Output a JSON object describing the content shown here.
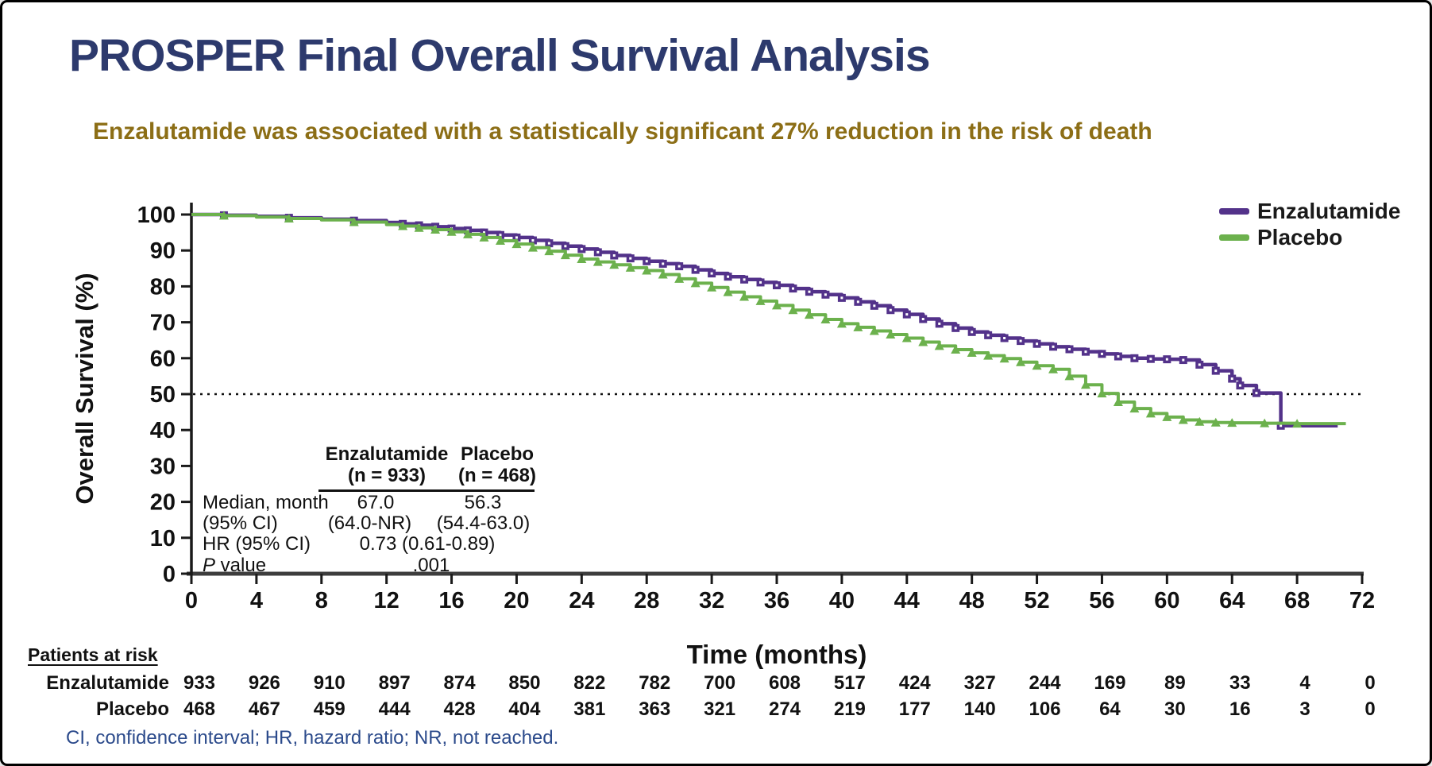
{
  "slide": {
    "title": "PROSPER Final Overall Survival Analysis",
    "subtitle": "Enzalutamide was associated with a statistically significant 27% reduction in the risk of death",
    "footnote": "CI, confidence interval; HR, hazard ratio; NR, not reached."
  },
  "colors": {
    "title_navy": "#2d3a6d",
    "subtitle_gold": "#8c6e16",
    "footnote_blue": "#2b4a8b",
    "enzalutamide_purple": "#53328a",
    "placebo_green": "#6cb14d",
    "axis_dark": "#1a1a1a",
    "xaxis_gray": "#3d3d3d"
  },
  "legend": [
    {
      "label": "Enzalutamide",
      "color": "#53328a"
    },
    {
      "label": "Placebo",
      "color": "#6cb14d"
    }
  ],
  "stats_table": {
    "col1_header": "Enzalutamide",
    "col2_header": "Placebo",
    "col1_subheader": "(n = 933)",
    "col2_subheader": "(n = 468)",
    "row1_label": "Median, month",
    "row1_col1": "67.0",
    "row1_col2": "56.3",
    "row2_label": "(95% CI)",
    "row2_col1": "(64.0-NR)",
    "row2_col2": "(54.4-63.0)",
    "row3_label": "HR (95% CI)",
    "row3_value": "0.73 (0.61-0.89)",
    "row4_label_p": "P",
    "row4_label_rest": " value",
    "row4_value": ".001"
  },
  "risk_table": {
    "header": "Patients at risk",
    "rows": [
      {
        "label": "Enzalutamide",
        "counts": [
          933,
          926,
          910,
          897,
          874,
          850,
          822,
          782,
          700,
          608,
          517,
          424,
          327,
          244,
          169,
          89,
          33,
          4,
          0
        ]
      },
      {
        "label": "Placebo",
        "counts": [
          468,
          467,
          459,
          444,
          428,
          404,
          381,
          363,
          321,
          274,
          219,
          177,
          140,
          106,
          64,
          30,
          16,
          3,
          0
        ]
      }
    ]
  },
  "chart_data": {
    "type": "line",
    "subtype": "kaplan-meier-step",
    "xlabel": "Time (months)",
    "ylabel": "Overall Survival (%)",
    "xlim": [
      0,
      72
    ],
    "ylim": [
      0,
      100
    ],
    "x_ticks": [
      0,
      4,
      8,
      12,
      16,
      20,
      24,
      28,
      32,
      36,
      40,
      44,
      48,
      52,
      56,
      60,
      64,
      68,
      72
    ],
    "y_ticks": [
      0,
      10,
      20,
      30,
      40,
      50,
      60,
      70,
      80,
      90,
      100
    ],
    "reference_line_y": 50,
    "grid": false,
    "legend_position": "top-right",
    "series": [
      {
        "name": "Enzalutamide",
        "color": "#53328a",
        "marker": "square",
        "median_months": 67.0,
        "x": [
          0,
          2,
          4,
          6,
          8,
          10,
          12,
          13,
          14,
          15,
          16,
          17,
          18,
          19,
          20,
          21,
          22,
          23,
          24,
          25,
          26,
          27,
          28,
          29,
          30,
          31,
          32,
          33,
          34,
          35,
          36,
          37,
          38,
          39,
          40,
          41,
          42,
          43,
          44,
          45,
          46,
          47,
          48,
          49,
          50,
          51,
          52,
          53,
          54,
          55,
          56,
          57,
          58,
          59,
          60,
          61,
          62,
          63,
          64,
          64.5,
          65.5,
          67,
          70.5
        ],
        "y": [
          100,
          99.8,
          99.5,
          99.1,
          98.7,
          98.3,
          97.8,
          97.4,
          97.0,
          96.6,
          96.1,
          95.6,
          95.0,
          94.3,
          93.6,
          92.8,
          92.0,
          91.2,
          90.4,
          89.5,
          88.6,
          87.8,
          87.0,
          86.3,
          85.6,
          84.6,
          83.6,
          82.7,
          81.9,
          81.1,
          80.3,
          79.4,
          78.5,
          77.7,
          76.8,
          75.7,
          74.6,
          73.4,
          72.2,
          70.9,
          69.6,
          68.4,
          67.3,
          66.4,
          65.6,
          64.8,
          64.0,
          63.2,
          62.5,
          61.8,
          61.2,
          60.5,
          60.0,
          59.8,
          59.7,
          59.5,
          58.2,
          56.5,
          54.3,
          52.4,
          50.3,
          41.2,
          41.2
        ]
      },
      {
        "name": "Placebo",
        "color": "#6cb14d",
        "marker": "triangle",
        "median_months": 56.3,
        "x": [
          0,
          2,
          4,
          6,
          8,
          10,
          12,
          13,
          14,
          15,
          16,
          17,
          18,
          19,
          20,
          21,
          22,
          23,
          24,
          25,
          26,
          27,
          28,
          29,
          30,
          31,
          32,
          33,
          34,
          35,
          36,
          37,
          38,
          39,
          40,
          41,
          42,
          43,
          44,
          45,
          46,
          47,
          48,
          49,
          50,
          51,
          52,
          53,
          54,
          55,
          56,
          57,
          58,
          59,
          60,
          61,
          62,
          63,
          64,
          66,
          68,
          71
        ],
        "y": [
          100,
          99.7,
          99.3,
          98.9,
          98.5,
          97.9,
          97.2,
          96.8,
          96.3,
          95.8,
          95.2,
          94.5,
          93.6,
          92.7,
          91.8,
          90.8,
          89.8,
          88.7,
          87.6,
          86.8,
          86.0,
          85.2,
          84.4,
          83.3,
          82.1,
          80.9,
          79.7,
          78.4,
          77.1,
          75.9,
          74.7,
          73.4,
          72.1,
          70.8,
          69.6,
          68.6,
          67.6,
          66.6,
          65.6,
          64.5,
          63.4,
          62.4,
          61.5,
          60.7,
          59.9,
          58.9,
          57.9,
          56.9,
          55.0,
          52.6,
          50.2,
          47.8,
          46.0,
          44.6,
          43.6,
          42.8,
          42.3,
          42.1,
          42.0,
          41.9,
          41.8,
          41.8
        ]
      }
    ],
    "hazard_ratio": "0.73 (0.61-0.89)",
    "p_value": ".001"
  }
}
